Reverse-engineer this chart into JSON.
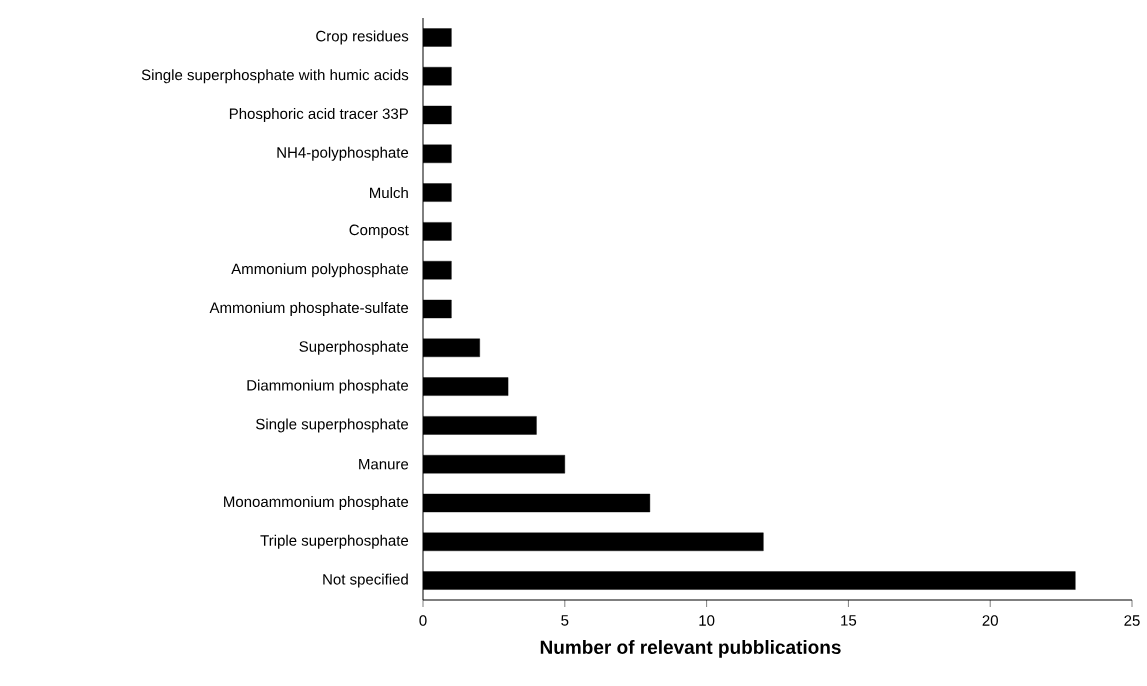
{
  "chart_data": {
    "type": "bar",
    "orientation": "horizontal",
    "categories": [
      "Crop residues",
      "Single superphosphate with humic acids",
      "Phosphoric acid tracer 33P",
      "NH4-polyphosphate",
      "Mulch",
      "Compost",
      "Ammonium polyphosphate",
      "Ammonium phosphate-sulfate",
      "Superphosphate",
      "Diammonium phosphate",
      "Single superphosphate",
      "Manure",
      "Monoammonium phosphate",
      "Triple superphosphate",
      "Not specified"
    ],
    "values": [
      1,
      1,
      1,
      1,
      1,
      1,
      1,
      1,
      2,
      3,
      4,
      5,
      8,
      12,
      23
    ],
    "color": "#000000",
    "xlabel": "Number of relevant pubblications",
    "xlim": [
      0,
      25
    ],
    "xticks": [
      0,
      5,
      10,
      15,
      20,
      25
    ],
    "grid": false
  }
}
